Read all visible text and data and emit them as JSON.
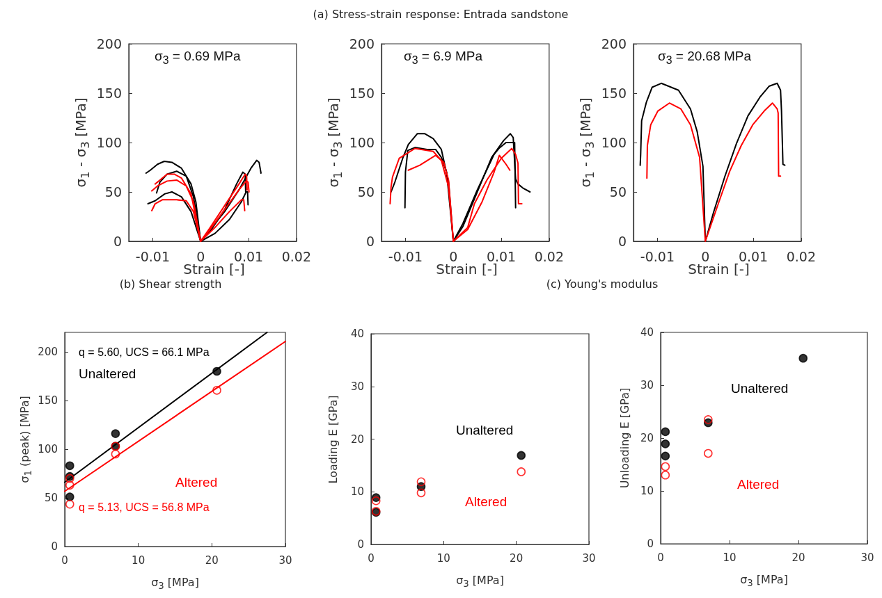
{
  "chart_data": [
    {
      "type": "line",
      "xlabel": "Strain [-]",
      "ylabel": "σ$_{1}$ - σ$_{3}$ [MPa]",
      "annotations": [
        "σ$_{3}$ = 0.69 MPa"
      ],
      "marker": "none",
      "line_style": "solid",
      "xlim": [
        -0.015,
        0.02
      ],
      "xticks": [
        -0.01,
        0,
        0.01,
        0.02
      ],
      "ylim": [
        0,
        200
      ],
      "yticks": [
        0,
        50,
        100,
        150,
        200
      ],
      "series": [
        {
          "color": "#000000",
          "x": [
            -0.0114,
            -0.0105,
            -0.009,
            -0.0076,
            -0.006,
            -0.004,
            -0.002,
            -0.001,
            0,
            0.002,
            0.005,
            0.008,
            0.0105,
            0.0117,
            0.0122,
            0.0126
          ],
          "values": [
            69,
            72,
            78,
            81,
            80,
            74,
            58,
            40,
            0,
            12,
            30,
            52,
            74,
            82,
            80,
            69
          ]
        },
        {
          "color": "#000000",
          "x": [
            -0.0092,
            -0.0085,
            -0.007,
            -0.005,
            -0.003,
            -0.0015,
            0,
            0.002,
            0.005,
            0.0075,
            0.0088,
            0.0093,
            0.0094
          ],
          "values": [
            49,
            60,
            68,
            71,
            66,
            45,
            0,
            10,
            32,
            58,
            70,
            68,
            50
          ]
        },
        {
          "color": "#000000",
          "x": [
            -0.011,
            -0.0095,
            -0.0075,
            -0.006,
            -0.004,
            -0.002,
            0,
            0.003,
            0.006,
            0.0085,
            0.0095,
            0.0098,
            0.0099
          ],
          "values": [
            38,
            41,
            48,
            50,
            45,
            30,
            0,
            8,
            22,
            40,
            50,
            50,
            37
          ]
        },
        {
          "color": "#ff0000",
          "x": [
            -0.0095,
            -0.0085,
            -0.007,
            -0.0055,
            -0.004,
            -0.002,
            0,
            0.002,
            0.005,
            0.008,
            0.0093,
            0.0096,
            0.0097
          ],
          "values": [
            58,
            62,
            68,
            68,
            64,
            48,
            0,
            14,
            36,
            58,
            68,
            66,
            52
          ]
        },
        {
          "color": "#ff0000",
          "x": [
            -0.0102,
            -0.009,
            -0.007,
            -0.005,
            -0.003,
            -0.0015,
            0,
            0.002,
            0.005,
            0.008,
            0.0095,
            0.0099,
            0.0101
          ],
          "values": [
            51,
            56,
            61,
            62,
            56,
            40,
            0,
            12,
            32,
            52,
            61,
            60,
            50
          ]
        },
        {
          "color": "#ff0000",
          "x": [
            -0.0102,
            -0.0095,
            -0.008,
            -0.005,
            -0.003,
            -0.0015,
            0,
            0.003,
            0.006,
            0.0085,
            0.009,
            0.0092
          ],
          "values": [
            31,
            38,
            42,
            42,
            41,
            30,
            0,
            14,
            30,
            42,
            42,
            31
          ]
        }
      ]
    },
    {
      "type": "line",
      "title": "(a) Stress-strain response: Entrada sandstone",
      "xlabel": "Strain [-]",
      "ylabel": "σ$_{1}$ - σ$_{3}$ [MPa]",
      "annotations": [
        "σ$_{3}$ = 6.9 MPa"
      ],
      "marker": "none",
      "line_style": "solid",
      "xlim": [
        -0.015,
        0.02
      ],
      "xticks": [
        -0.01,
        0,
        0.01,
        0.02
      ],
      "ylim": [
        0,
        200
      ],
      "yticks": [
        0,
        50,
        100,
        150,
        200
      ],
      "series": [
        {
          "color": "#000000",
          "x": [
            -0.013,
            -0.0122,
            -0.0105,
            -0.0094,
            -0.0075,
            -0.006,
            -0.0042,
            -0.0025,
            -0.001,
            0,
            0.002,
            0.005,
            0.008,
            0.0105,
            0.0119,
            0.0125,
            0.013,
            0.0135,
            0.0145,
            0.016
          ],
          "values": [
            50,
            60,
            85,
            98,
            109,
            109,
            104,
            93,
            60,
            0,
            15,
            50,
            85,
            102,
            109,
            105,
            63,
            58,
            54,
            50
          ]
        },
        {
          "color": "#000000",
          "x": [
            -0.0101,
            -0.01,
            -0.0095,
            -0.008,
            -0.0055,
            -0.0037,
            -0.0025,
            -0.0014,
            0,
            0.002,
            0.005,
            0.0085,
            0.0095,
            0.011,
            0.0128,
            0.013
          ],
          "values": [
            34,
            70,
            92,
            95,
            93,
            93,
            85,
            70,
            0,
            18,
            52,
            88,
            94,
            100,
            100,
            34
          ]
        },
        {
          "color": "#ff0000",
          "x": [
            -0.0132,
            -0.013,
            -0.0127,
            -0.0113,
            -0.008,
            -0.0042,
            -0.0025,
            -0.001,
            0,
            0.003,
            0.0044,
            0.007,
            0.01,
            0.0122,
            0.013,
            0.0135,
            0.0136,
            0.0143
          ],
          "values": [
            38,
            55,
            65,
            84,
            94,
            91,
            82,
            55,
            0,
            14,
            38,
            62,
            84,
            94,
            88,
            79,
            38,
            38
          ]
        },
        {
          "color": "#ff0000",
          "x": [
            -0.0094,
            -0.007,
            -0.0037,
            -0.002,
            -0.001,
            0,
            0.003,
            0.006,
            0.0085,
            0.0096,
            0.011,
            0.0118
          ],
          "values": [
            72,
            77,
            87,
            80,
            62,
            0,
            12,
            40,
            70,
            87,
            78,
            72
          ]
        }
      ]
    },
    {
      "type": "line",
      "xlabel": "Strain [-]",
      "ylabel": "σ$_{1}$ - σ$_{3}$ [MPa]",
      "annotations": [
        "σ$_{3}$ = 20.68 MPa"
      ],
      "marker": "none",
      "line_style": "solid",
      "xlim": [
        -0.015,
        0.02
      ],
      "xticks": [
        -0.01,
        0,
        0.01,
        0.02
      ],
      "ylim": [
        0,
        200
      ],
      "yticks": [
        0,
        50,
        100,
        150,
        200
      ],
      "series": [
        {
          "color": "#000000",
          "x": [
            -0.0136,
            -0.0135,
            -0.0133,
            -0.0123,
            -0.0111,
            -0.0092,
            -0.0056,
            -0.0031,
            -0.0017,
            -0.0005,
            0,
            0.0017,
            0.0041,
            0.0065,
            0.0089,
            0.0114,
            0.0133,
            0.015,
            0.0157,
            0.0159,
            0.0162,
            0.0166
          ],
          "values": [
            77,
            88,
            122,
            141,
            156,
            160,
            153,
            134,
            111,
            76,
            0,
            29,
            66,
            99,
            127,
            146,
            157,
            160,
            153,
            132,
            78,
            77
          ]
        },
        {
          "color": "#ff0000",
          "x": [
            -0.0122,
            -0.0121,
            -0.0114,
            -0.0099,
            -0.0075,
            -0.0051,
            -0.0031,
            -0.0012,
            0,
            0.0027,
            0.0051,
            0.0075,
            0.0099,
            0.0123,
            0.014,
            0.015,
            0.0152,
            0.0153,
            0.0157
          ],
          "values": [
            64,
            97,
            118,
            132,
            140,
            134,
            118,
            85,
            0,
            38,
            71,
            97,
            118,
            132,
            140,
            134,
            130,
            66,
            66
          ]
        }
      ]
    },
    {
      "type": "scatter",
      "title": "(b) Shear strength",
      "xlabel": "σ$_{3}$ [MPa]",
      "ylabel": "σ$_{1}$ (peak) [MPa]",
      "xlim": [
        0,
        30
      ],
      "xticks": [
        0,
        10,
        20,
        30
      ],
      "ylim": [
        0,
        220
      ],
      "yticks": [
        0,
        50,
        100,
        150,
        200
      ],
      "marker": "circle",
      "annotations": [
        "q = 5.60, UCS = 66.1 MPa",
        "Unaltered",
        "Altered",
        "q = 5.13, UCS = 56.8 MPa"
      ],
      "series": [
        {
          "color": "#000000",
          "x": [
            0.69,
            0.69,
            0.69,
            6.9,
            6.9,
            20.68
          ],
          "values": [
            83,
            72,
            51,
            116,
            103,
            180
          ]
        },
        {
          "color": "#ff0000",
          "x": [
            0.69,
            0.69,
            0.69,
            6.9,
            6.9,
            20.68
          ],
          "values": [
            70,
            63,
            43.5,
            103,
            95,
            160.5
          ]
        },
        {
          "type": "line",
          "marker": "none",
          "color": "#000000",
          "x": [
            0,
            27.5
          ],
          "values": [
            66.1,
            220
          ]
        },
        {
          "type": "line",
          "marker": "none",
          "color": "#ff0000",
          "x": [
            0,
            30
          ],
          "values": [
            56.8,
            210.7
          ]
        }
      ]
    },
    {
      "type": "scatter",
      "title": "(c) Young's modulus",
      "xlabel": "σ$_{3}$ [MPa]",
      "ylabel": "Loading E [GPa]",
      "xlim": [
        0,
        30
      ],
      "xticks": [
        0,
        10,
        20,
        30
      ],
      "ylim": [
        0,
        40
      ],
      "yticks": [
        0,
        10,
        20,
        30,
        40
      ],
      "marker": "circle",
      "series": [
        {
          "name": "Unaltered",
          "color": "#000000",
          "x": [
            0.69,
            0.69,
            6.9,
            20.68
          ],
          "values": [
            8.9,
            6.1,
            11,
            16.9
          ]
        },
        {
          "name": "Altered",
          "color": "#ff0000",
          "x": [
            0.69,
            0.69,
            6.9,
            6.9,
            20.68
          ],
          "values": [
            8.3,
            6.3,
            11.9,
            9.8,
            13.8
          ]
        }
      ]
    },
    {
      "type": "scatter",
      "xlabel": "σ$_{3}$ [MPa]",
      "ylabel": "Unloading E [GPa]",
      "xlim": [
        0,
        30
      ],
      "xticks": [
        0,
        10,
        20,
        30
      ],
      "ylim": [
        0,
        40
      ],
      "yticks": [
        0,
        10,
        20,
        30,
        40
      ],
      "marker": "circle",
      "series": [
        {
          "name": "Unaltered",
          "color": "#000000",
          "x": [
            0.69,
            0.69,
            0.69,
            6.9,
            20.68
          ],
          "values": [
            21.2,
            18.9,
            16.6,
            22.9,
            35.1
          ]
        },
        {
          "name": "Altered",
          "color": "#ff0000",
          "x": [
            0.69,
            0.69,
            6.9,
            6.9
          ],
          "values": [
            14.6,
            13,
            23.5,
            17.1
          ]
        }
      ]
    }
  ]
}
